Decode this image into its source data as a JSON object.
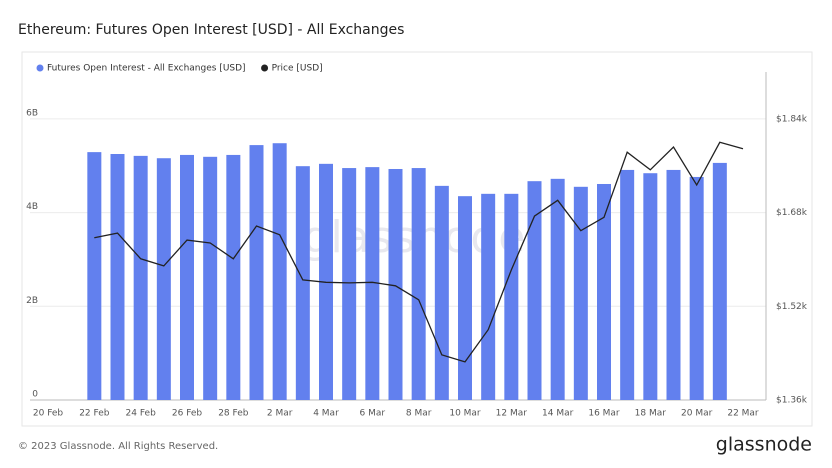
{
  "chart_data": {
    "type": "bar-line",
    "title": "Ethereum: Futures Open Interest [USD] - All Exchanges",
    "watermark": "glassnode",
    "footer": "© 2023 Glassnode. All Rights Reserved.",
    "brand": "glassnode",
    "categories": [
      "20 Feb",
      null,
      "22 Feb",
      null,
      "24 Feb",
      null,
      "26 Feb",
      null,
      "28 Feb",
      null,
      "2 Mar",
      null,
      "4 Mar",
      null,
      "6 Mar",
      null,
      "8 Mar",
      null,
      "10 Mar",
      null,
      "12 Mar",
      null,
      "14 Mar",
      null,
      "16 Mar",
      null,
      "18 Mar",
      null,
      "20 Mar",
      null,
      "22 Mar"
    ],
    "series": [
      {
        "name": "Futures Open Interest - All Exchanges [USD]",
        "color": "#6280ee",
        "kind": "bar",
        "axis": "y",
        "values": [
          null,
          null,
          5290000000.0,
          5250000000.0,
          5210000000.0,
          5160000000.0,
          5230000000.0,
          5190000000.0,
          5230000000.0,
          5440000000.0,
          5480000000.0,
          4990000000.0,
          5040000000.0,
          4950000000.0,
          4970000000.0,
          4930000000.0,
          4950000000.0,
          4570000000.0,
          4350000000.0,
          4400000000.0,
          4400000000.0,
          4670000000.0,
          4720000000.0,
          4550000000.0,
          4610000000.0,
          4910000000.0,
          4840000000.0,
          4910000000.0,
          4760000000.0,
          5060000000.0,
          null
        ]
      },
      {
        "name": "Price [USD]",
        "color": "#222222",
        "kind": "line",
        "axis": "y2",
        "values": [
          null,
          null,
          1637,
          1645,
          1601,
          1589,
          1633,
          1628,
          1601,
          1657,
          1642,
          1565,
          1561,
          1560,
          1561,
          1555,
          1531,
          1437,
          1425,
          1480,
          1582,
          1674,
          1701,
          1649,
          1672,
          1783,
          1753,
          1792,
          1727,
          1800,
          1789
        ]
      }
    ],
    "ylim": [
      0,
      7000000000
    ],
    "yticks": [
      {
        "value": 0,
        "label": "0"
      },
      {
        "value": 2000000000,
        "label": "2B"
      },
      {
        "value": 4000000000,
        "label": "4B"
      },
      {
        "value": 6000000000,
        "label": "6B"
      }
    ],
    "y2lim": [
      1360,
      1920
    ],
    "y2ticks": [
      {
        "value": 1360,
        "label": "$1.36k"
      },
      {
        "value": 1520,
        "label": "$1.52k"
      },
      {
        "value": 1680,
        "label": "$1.68k"
      },
      {
        "value": 1840,
        "label": "$1.84k"
      }
    ],
    "grid": true
  }
}
